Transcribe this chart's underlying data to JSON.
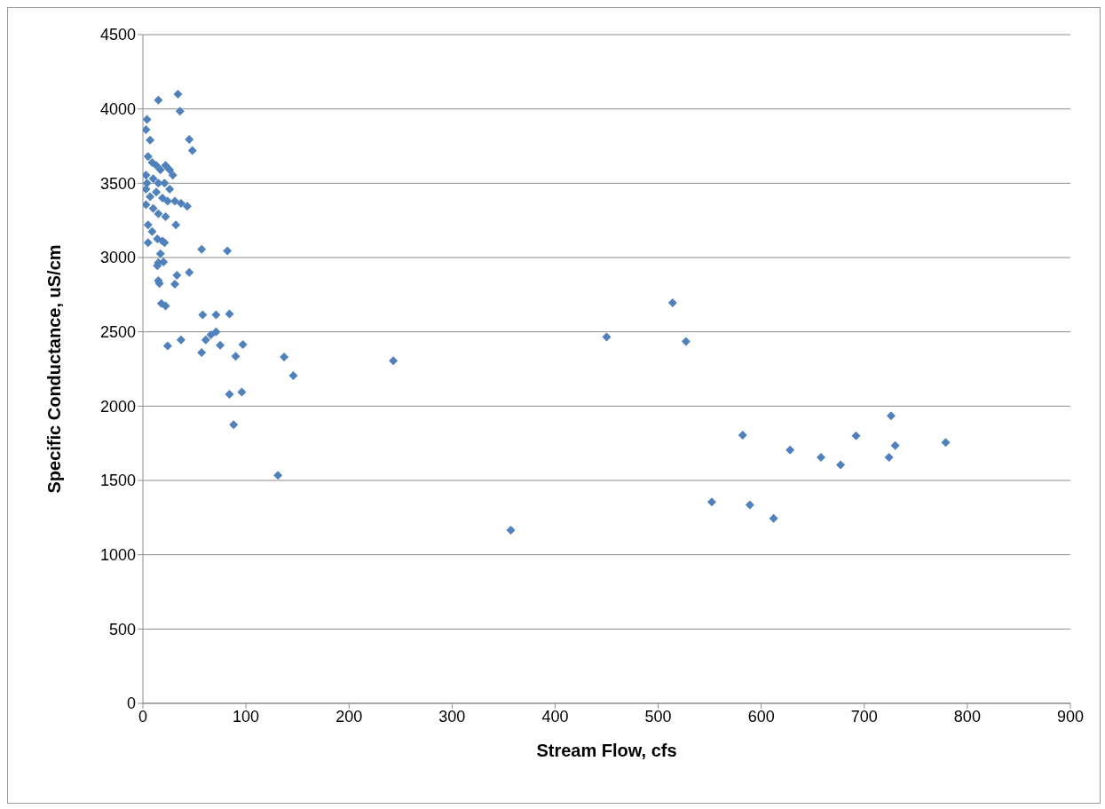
{
  "chart_data": {
    "type": "scatter",
    "xlabel": "Stream Flow, cfs",
    "ylabel": "Specific Conductance, uS/cm",
    "xlim": [
      0,
      900
    ],
    "ylim": [
      0,
      4500
    ],
    "xticks": [
      0,
      100,
      200,
      300,
      400,
      500,
      600,
      700,
      800,
      900
    ],
    "yticks": [
      0,
      500,
      1000,
      1500,
      2000,
      2500,
      3000,
      3500,
      4000,
      4500
    ],
    "grid": "y",
    "marker": "diamond",
    "series": [
      {
        "color": "#4f81bd",
        "x": [
          15,
          34,
          36,
          4,
          3,
          7,
          45,
          48,
          5,
          9,
          13,
          17,
          22,
          26,
          29,
          3,
          4,
          10,
          15,
          21,
          26,
          3,
          7,
          13,
          19,
          24,
          31,
          37,
          43,
          3,
          10,
          15,
          22,
          32,
          5,
          9,
          14,
          5,
          19,
          21,
          17,
          15,
          20,
          14,
          57,
          82,
          45,
          33,
          31,
          15,
          16,
          18,
          22,
          24,
          37,
          58,
          71,
          84,
          66,
          71,
          75,
          61,
          57,
          97,
          90,
          84,
          96,
          88,
          137,
          146,
          131,
          243,
          357,
          450,
          514,
          527,
          552,
          582,
          589,
          612,
          628,
          658,
          677,
          692,
          726,
          730,
          724,
          779
        ],
        "values": [
          4060,
          4100,
          3985,
          3930,
          3860,
          3790,
          3795,
          3720,
          3680,
          3640,
          3620,
          3590,
          3620,
          3590,
          3555,
          3555,
          3500,
          3530,
          3500,
          3500,
          3460,
          3460,
          3410,
          3440,
          3400,
          3380,
          3380,
          3365,
          3345,
          3355,
          3330,
          3295,
          3275,
          3220,
          3220,
          3175,
          3125,
          3100,
          3110,
          3100,
          3025,
          2965,
          2970,
          2945,
          3055,
          3045,
          2900,
          2880,
          2820,
          2845,
          2825,
          2690,
          2675,
          2405,
          2445,
          2615,
          2615,
          2620,
          2480,
          2500,
          2410,
          2445,
          2360,
          2415,
          2335,
          2080,
          2095,
          1875,
          2330,
          2205,
          1535,
          2305,
          1165,
          2465,
          2695,
          2435,
          1355,
          1805,
          1335,
          1245,
          1705,
          1655,
          1605,
          1800,
          1935,
          1735,
          1655,
          1755
        ]
      }
    ]
  }
}
